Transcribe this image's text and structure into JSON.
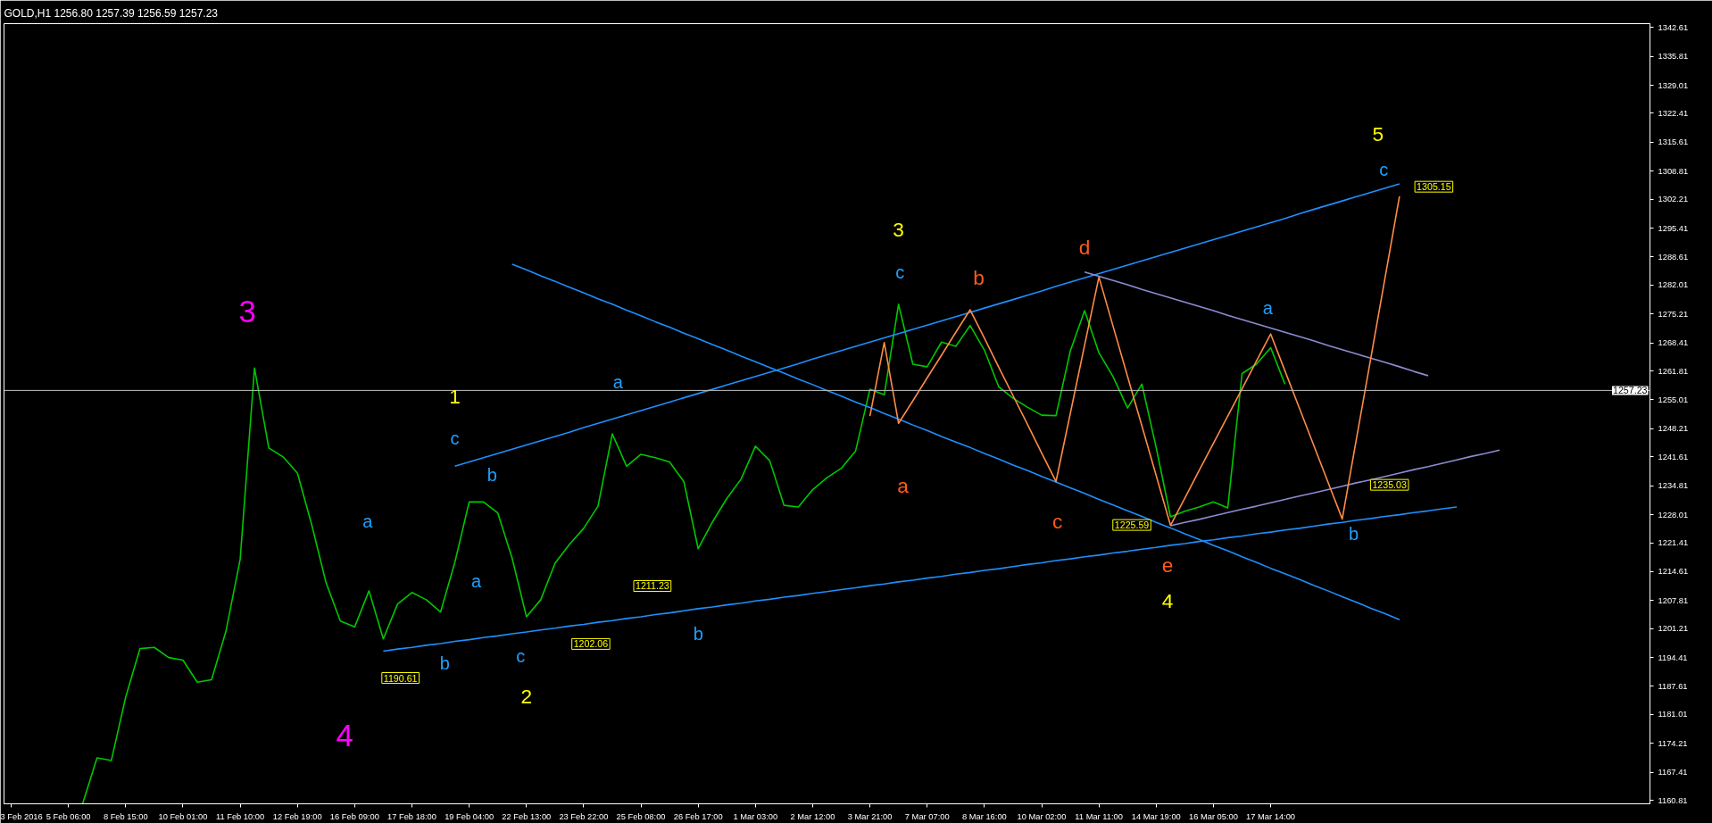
{
  "chart_data": {
    "type": "line",
    "title": "GOLD,H1  1256.80 1257.39 1256.59 1257.23",
    "categories": [
      "3 Feb 2016",
      null,
      null,
      null,
      "5 Feb 06:00",
      null,
      null,
      null,
      "8 Feb 15:00",
      null,
      null,
      null,
      "10 Feb 01:00",
      null,
      null,
      null,
      "11 Feb 10:00",
      null,
      null,
      null,
      "12 Feb 19:00",
      null,
      null,
      null,
      "16 Feb 09:00",
      null,
      null,
      null,
      "17 Feb 18:00",
      null,
      null,
      null,
      "19 Feb 04:00",
      null,
      null,
      null,
      "22 Feb 13:00",
      null,
      null,
      null,
      "23 Feb 22:00",
      null,
      null,
      null,
      "25 Feb 08:00",
      null,
      null,
      null,
      "26 Feb 17:00",
      null,
      null,
      null,
      "1 Mar 03:00",
      null,
      null,
      null,
      "2 Mar 12:00",
      null,
      null,
      null,
      "3 Mar 21:00",
      null,
      null,
      null,
      "7 Mar 07:00",
      null,
      null,
      null,
      "8 Mar 16:00",
      null,
      null,
      null,
      "10 Mar 02:00",
      null,
      null,
      null,
      "11 Mar 11:00",
      null,
      null,
      null,
      "14 Mar 19:00",
      null,
      null,
      null,
      "16 Mar 05:00",
      null,
      null,
      null,
      "17 Mar 14:00",
      null,
      null,
      null,
      null,
      null,
      null,
      null,
      null,
      null,
      null,
      null,
      null,
      null,
      null,
      null,
      null,
      null,
      null,
      null,
      null,
      null,
      null,
      null,
      null,
      null,
      null
    ],
    "ylim": [
      1160.0,
      1343.5
    ],
    "yticks": [
      1342.61,
      1335.81,
      1329.01,
      1322.41,
      1315.61,
      1308.81,
      1302.21,
      1295.41,
      1288.61,
      1282.01,
      1275.21,
      1268.41,
      1261.81,
      1255.01,
      1248.21,
      1241.61,
      1234.81,
      1228.01,
      1221.41,
      1214.61,
      1207.81,
      1201.21,
      1194.41,
      1187.61,
      1181.01,
      1174.21,
      1167.41,
      1160.81
    ],
    "grid": false,
    "series": [
      {
        "color": "#00c800",
        "values": [
          null,
          null,
          null,
          null,
          null,
          1160.1,
          1170.8,
          1170.2,
          1185.1,
          1196.5,
          1196.8,
          1194.4,
          1193.8,
          1188.6,
          1189.2,
          1200.5,
          1217.5,
          1262.5,
          1243.7,
          1241.6,
          1237.8,
          1225.6,
          1212.0,
          1203.0,
          1201.6,
          1210.1,
          1198.8,
          1207.0,
          1209.7,
          1208.0,
          1205.1,
          1216.8,
          1231.0,
          1231.0,
          1228.4,
          1217.8,
          1204.0,
          1208.0,
          1216.6,
          1221.0,
          1224.8,
          1230.0,
          1247.0,
          1239.4,
          1242.2,
          1241.4,
          1240.4,
          1235.8,
          1220.0,
          1226.3,
          1231.8,
          1236.4,
          1244.1,
          1240.7,
          1230.2,
          1229.8,
          1233.9,
          1236.7,
          1238.9,
          1243.0,
          1257.5,
          1256.2,
          1277.5,
          1263.4,
          1262.8,
          1268.6,
          1267.6,
          1272.5,
          1266.7,
          1258.1,
          1255.4,
          1253.3,
          1251.4,
          1251.3,
          1266.5,
          1276.0,
          1266.1,
          1260.4,
          1253.1,
          1258.7,
          1243.8,
          1227.5,
          1228.8,
          1229.8,
          1231.0,
          1229.6,
          1261.2,
          1263.4,
          1267.3,
          1258.7,
          null,
          null,
          null,
          null,
          null,
          null,
          null,
          null,
          null,
          null,
          null,
          null,
          null,
          null,
          null,
          null,
          null,
          null,
          null,
          null,
          null,
          null,
          null,
          null,
          null
        ]
      },
      {
        "color": "#1e90ff",
        "values": [
          null,
          null,
          null,
          null,
          null,
          null,
          null,
          null,
          null,
          null,
          null,
          null,
          null,
          null,
          null,
          null,
          null,
          null,
          null,
          null,
          null,
          null,
          null,
          null,
          null,
          null,
          1195.9,
          1196.4,
          1196.8,
          1197.3,
          1197.7,
          1198.2,
          1198.6,
          1199.1,
          1199.5,
          1200.0,
          1200.4,
          1200.9,
          1201.3,
          1201.8,
          1202.2,
          1202.7,
          1203.1,
          1203.6,
          1204.0,
          1204.5,
          1204.9,
          1205.4,
          1205.9,
          1206.3,
          1206.8,
          1207.2,
          1207.7,
          1208.1,
          1208.6,
          1209.0,
          1209.5,
          1209.9,
          1210.4,
          1210.8,
          1211.3,
          1211.7,
          1212.2,
          1212.6,
          1213.1,
          1213.5,
          1214.0,
          1214.4,
          1214.9,
          1215.3,
          1215.8,
          1216.3,
          1216.7,
          1217.2,
          1217.6,
          1218.1,
          1218.5,
          1219.0,
          1219.4,
          1219.9,
          1220.3,
          1220.8,
          1221.2,
          1221.7,
          1222.1,
          1222.6,
          1223.0,
          1223.5,
          1223.9,
          1224.4,
          1224.8,
          1225.3,
          1225.8,
          1226.2,
          1226.7,
          1227.1,
          1227.6,
          1228.0,
          1228.5,
          1228.9,
          1229.4,
          1229.8,
          null,
          null,
          null,
          null,
          null,
          null,
          null,
          null,
          null,
          null,
          null,
          null,
          null
        ]
      },
      {
        "color": "#1e90ff",
        "values": [
          null,
          null,
          null,
          null,
          null,
          null,
          null,
          null,
          null,
          null,
          null,
          null,
          null,
          null,
          null,
          null,
          null,
          null,
          null,
          null,
          null,
          null,
          null,
          null,
          null,
          null,
          null,
          null,
          null,
          null,
          null,
          1239.4,
          1240.4,
          1241.4,
          1242.4,
          1243.4,
          1244.4,
          1245.4,
          1246.4,
          1247.4,
          1248.5,
          1249.5,
          1250.5,
          1251.5,
          1252.5,
          1253.5,
          1254.5,
          1255.5,
          1256.5,
          1257.5,
          1258.5,
          1259.5,
          1260.5,
          1261.5,
          1262.5,
          1263.5,
          1264.6,
          1265.6,
          1266.6,
          1267.6,
          1268.6,
          1269.6,
          1270.6,
          1271.6,
          1272.6,
          1273.6,
          1274.6,
          1275.6,
          1276.6,
          1277.6,
          1278.6,
          1279.6,
          1280.6,
          1281.7,
          1282.7,
          1283.7,
          1284.7,
          1285.7,
          1286.7,
          1287.7,
          1288.7,
          1289.7,
          1290.7,
          1291.7,
          1292.7,
          1293.7,
          1294.7,
          1295.7,
          1296.7,
          1297.7,
          1298.8,
          1299.8,
          1300.8,
          1301.8,
          1302.8,
          1303.8,
          1304.8,
          1305.8,
          null,
          null,
          null,
          null,
          null,
          null,
          null,
          null,
          null,
          null,
          null,
          null,
          null,
          null,
          null,
          null,
          null
        ]
      },
      {
        "color": "#1e90ff",
        "values": [
          null,
          null,
          null,
          null,
          null,
          null,
          null,
          null,
          null,
          null,
          null,
          null,
          null,
          null,
          null,
          null,
          null,
          null,
          null,
          null,
          null,
          null,
          null,
          null,
          null,
          null,
          null,
          null,
          null,
          null,
          null,
          null,
          null,
          null,
          null,
          1286.9,
          1285.6,
          1284.2,
          1282.9,
          1281.5,
          1280.2,
          1278.8,
          1277.5,
          1276.1,
          1274.8,
          1273.4,
          1272.1,
          1270.7,
          1269.4,
          1268.0,
          1266.7,
          1265.3,
          1264.0,
          1262.6,
          1261.3,
          1259.9,
          1258.6,
          1257.2,
          1255.9,
          1254.5,
          1253.2,
          1251.8,
          1250.5,
          1249.1,
          1247.8,
          1246.4,
          1245.1,
          1243.8,
          1242.4,
          1241.1,
          1239.7,
          1238.4,
          1237.0,
          1235.7,
          1234.3,
          1233.0,
          1231.6,
          1230.3,
          1228.9,
          1227.6,
          1226.2,
          1224.9,
          1223.5,
          1222.2,
          1220.8,
          1219.5,
          1218.1,
          1216.8,
          1215.4,
          1214.1,
          1212.8,
          1211.4,
          1210.1,
          1208.7,
          1207.4,
          1206.0,
          1204.7,
          1203.3,
          null,
          null,
          null,
          null,
          null,
          null,
          null,
          null,
          null,
          null,
          null,
          null,
          null,
          null,
          null,
          null,
          null
        ]
      },
      {
        "color": "#8c8cd2",
        "values": [
          null,
          null,
          null,
          null,
          null,
          null,
          null,
          null,
          null,
          null,
          null,
          null,
          null,
          null,
          null,
          null,
          null,
          null,
          null,
          null,
          null,
          null,
          null,
          null,
          null,
          null,
          null,
          null,
          null,
          null,
          null,
          null,
          null,
          null,
          null,
          null,
          null,
          null,
          null,
          null,
          null,
          null,
          null,
          null,
          null,
          null,
          null,
          null,
          null,
          null,
          null,
          null,
          null,
          null,
          null,
          null,
          null,
          null,
          null,
          null,
          null,
          null,
          null,
          null,
          null,
          null,
          null,
          null,
          null,
          null,
          null,
          null,
          null,
          null,
          null,
          1285.1,
          1284.1,
          1283.1,
          1282.1,
          1281.0,
          1280.0,
          1279.0,
          1278.0,
          1277.0,
          1276.0,
          1274.9,
          1273.9,
          1272.9,
          1271.9,
          1270.9,
          1269.9,
          1268.9,
          1267.8,
          1266.8,
          1265.8,
          1264.8,
          1263.8,
          1262.8,
          1261.7,
          1260.7,
          null,
          null,
          null,
          null,
          null,
          null,
          null,
          null,
          null,
          null,
          null,
          null,
          null,
          null,
          null
        ]
      },
      {
        "color": "#8c8cd2",
        "values": [
          null,
          null,
          null,
          null,
          null,
          null,
          null,
          null,
          null,
          null,
          null,
          null,
          null,
          null,
          null,
          null,
          null,
          null,
          null,
          null,
          null,
          null,
          null,
          null,
          null,
          null,
          null,
          null,
          null,
          null,
          null,
          null,
          null,
          null,
          null,
          null,
          null,
          null,
          null,
          null,
          null,
          null,
          null,
          null,
          null,
          null,
          null,
          null,
          null,
          null,
          null,
          null,
          null,
          null,
          null,
          null,
          null,
          null,
          null,
          null,
          null,
          null,
          null,
          null,
          null,
          null,
          null,
          null,
          null,
          null,
          null,
          null,
          null,
          null,
          null,
          null,
          null,
          null,
          null,
          null,
          null,
          1225.4,
          1226.2,
          1226.9,
          1227.7,
          1228.5,
          1229.3,
          1230.0,
          1230.8,
          1231.6,
          1232.4,
          1233.1,
          1233.9,
          1234.7,
          1235.5,
          1236.2,
          1237.0,
          1237.8,
          1238.6,
          1239.3,
          1240.1,
          1240.9,
          1241.7,
          1242.4,
          1243.2,
          null,
          null,
          null,
          null,
          null,
          null,
          null,
          null,
          null,
          null
        ]
      },
      {
        "color": "#ff8c46",
        "values": [
          null,
          null,
          null,
          null,
          null,
          null,
          null,
          null,
          null,
          null,
          null,
          null,
          null,
          null,
          null,
          null,
          null,
          null,
          null,
          null,
          null,
          null,
          null,
          null,
          null,
          null,
          null,
          null,
          null,
          null,
          null,
          null,
          null,
          null,
          null,
          null,
          null,
          null,
          null,
          null,
          null,
          null,
          null,
          null,
          null,
          null,
          null,
          null,
          null,
          null,
          null,
          null,
          null,
          null,
          null,
          null,
          null,
          null,
          null,
          null,
          1251.2,
          1268.5,
          1249.5,
          1254.8,
          1260.2,
          1265.5,
          1270.9,
          1276.2,
          1269.5,
          1262.7,
          1256.0,
          1249.3,
          1242.5,
          1235.8,
          1251.8,
          1267.9,
          1283.9,
          1272.2,
          1260.5,
          1248.9,
          1237.2,
          1225.5,
          1231.9,
          1238.4,
          1244.8,
          1251.2,
          1257.6,
          1264.1,
          1270.5,
          1261.8,
          1253.1,
          1244.4,
          1235.7,
          1227.0,
          1246.0,
          1264.9,
          1283.9,
          1302.9,
          null,
          null,
          null,
          null,
          null,
          null,
          null,
          null,
          null,
          null,
          null,
          null,
          null,
          null,
          null,
          null,
          null
        ]
      }
    ],
    "ref_lines": [
      {
        "axis": "y",
        "value": 1257.23,
        "label": "1257.23",
        "color": "#c0c0c0"
      }
    ],
    "annotations": [
      "3",
      "4",
      "1",
      "2",
      "3",
      "4",
      "5",
      "a",
      "c",
      "b",
      "a",
      "b",
      "c",
      "a",
      "b",
      "c",
      "a",
      "b",
      "c",
      "a",
      "b",
      "c",
      "d",
      "e",
      "1190.61",
      "1202.06",
      "1211.23",
      "1225.59",
      "1235.03",
      "1305.15"
    ]
  }
}
